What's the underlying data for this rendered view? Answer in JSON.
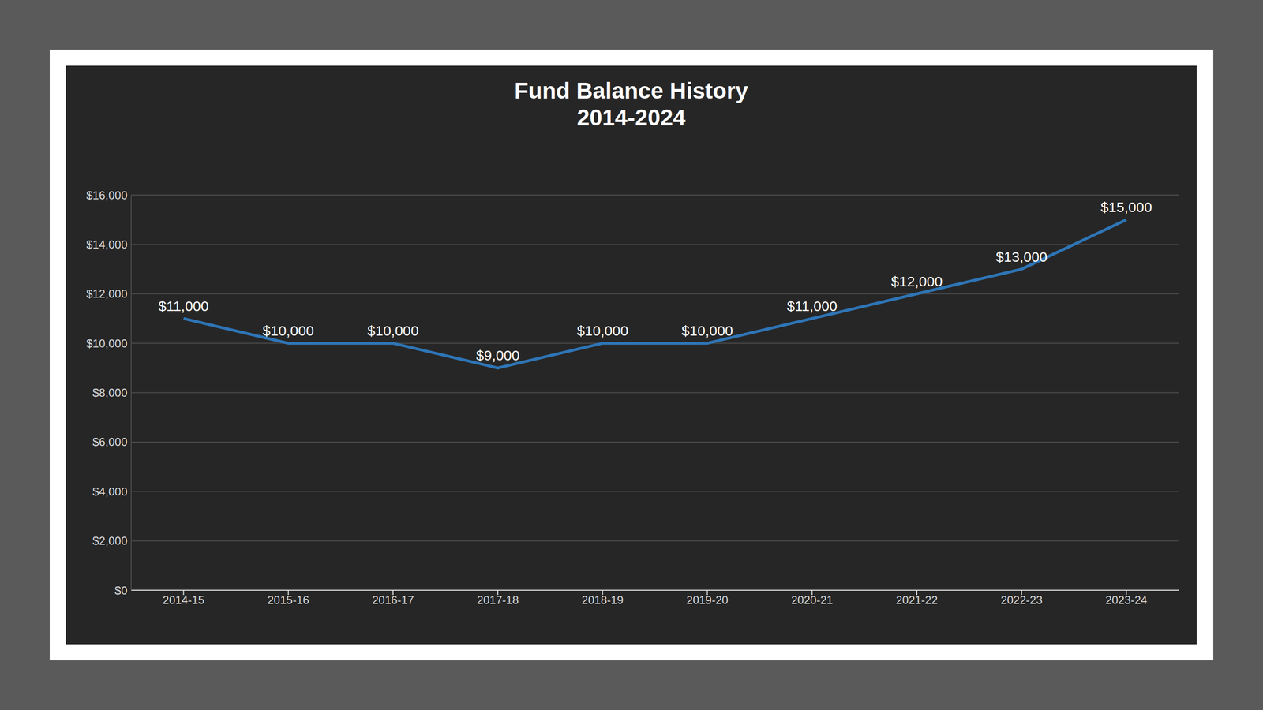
{
  "chart_data": {
    "type": "line",
    "title": "Fund Balance History",
    "subtitle": "2014-2024",
    "categories": [
      "2014-15",
      "2015-16",
      "2016-17",
      "2017-18",
      "2018-19",
      "2019-20",
      "2020-21",
      "2021-22",
      "2022-23",
      "2023-24"
    ],
    "values": [
      11000,
      10000,
      10000,
      9000,
      10000,
      10000,
      11000,
      12000,
      13000,
      15000
    ],
    "value_labels": [
      "$11,000",
      "$10,000",
      "$10,000",
      "$9,000",
      "$10,000",
      "$10,000",
      "$11,000",
      "$12,000",
      "$13,000",
      "$15,000"
    ],
    "color": "#2e75b6",
    "ylim": [
      0,
      16000
    ],
    "yticks": [
      {
        "value": 0,
        "label": "$0"
      },
      {
        "value": 2000,
        "label": "$2,000"
      },
      {
        "value": 4000,
        "label": "$4,000"
      },
      {
        "value": 6000,
        "label": "$6,000"
      },
      {
        "value": 8000,
        "label": "$8,000"
      },
      {
        "value": 10000,
        "label": "$10,000"
      },
      {
        "value": 12000,
        "label": "$12,000"
      },
      {
        "value": 14000,
        "label": "$14,000"
      },
      {
        "value": 16000,
        "label": "$16,000"
      }
    ],
    "grid": true,
    "data_labels": true
  }
}
